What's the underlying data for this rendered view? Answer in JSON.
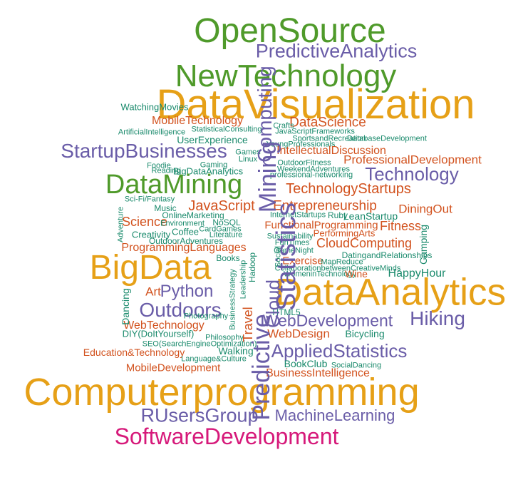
{
  "palette": {
    "orange": "#E6A017",
    "green": "#4F9A2A",
    "purple": "#6A5DA8",
    "red": "#D2521E",
    "magenta": "#D6197A",
    "teal": "#1A8A6C"
  },
  "words": [
    {
      "text": "OpenSource",
      "color": "green"
    },
    {
      "text": "PredictiveAnalytics",
      "color": "purple"
    },
    {
      "text": "NewTechnology",
      "color": "green"
    },
    {
      "text": "DataVisualization",
      "color": "orange"
    },
    {
      "text": "WatchingMovies",
      "color": "teal"
    },
    {
      "text": "MobileTechnology",
      "color": "red"
    },
    {
      "text": "DataScience",
      "color": "red"
    },
    {
      "text": "StatisticalConsulting",
      "color": "teal"
    },
    {
      "text": "Crafts",
      "color": "teal"
    },
    {
      "text": "JavaScriptFrameworks",
      "color": "teal"
    },
    {
      "text": "SportsandRecreation",
      "color": "teal"
    },
    {
      "text": "DatabaseDevelopment",
      "color": "teal"
    },
    {
      "text": "ArtificialIntelligence",
      "color": "teal"
    },
    {
      "text": "UserExperience",
      "color": "teal"
    },
    {
      "text": "YoungProfessionals",
      "color": "teal"
    },
    {
      "text": "StartupBusinesses",
      "color": "purple"
    },
    {
      "text": "IntellectualDiscussion",
      "color": "red"
    },
    {
      "text": "ProfessionalDevelopment",
      "color": "red"
    },
    {
      "text": "Games",
      "color": "teal"
    },
    {
      "text": "Linux",
      "color": "teal"
    },
    {
      "text": "OutdoorFitness",
      "color": "teal"
    },
    {
      "text": "Foodie",
      "color": "teal"
    },
    {
      "text": "Gaming",
      "color": "teal"
    },
    {
      "text": "WeekendAdventures",
      "color": "teal"
    },
    {
      "text": "Reading",
      "color": "teal"
    },
    {
      "text": "BigDataAnalytics",
      "color": "teal"
    },
    {
      "text": "professional-networking",
      "color": "teal"
    },
    {
      "text": "Technology",
      "color": "purple"
    },
    {
      "text": "DataMining",
      "color": "green"
    },
    {
      "text": "TechnologyStartups",
      "color": "red"
    },
    {
      "text": "Sci-Fi/Fantasy",
      "color": "teal"
    },
    {
      "text": "JavaScript",
      "color": "red"
    },
    {
      "text": "Entrepreneurship",
      "color": "red"
    },
    {
      "text": "DiningOut",
      "color": "red"
    },
    {
      "text": "Music",
      "color": "teal"
    },
    {
      "text": "OnlineMarketing",
      "color": "teal"
    },
    {
      "text": "InternetStartups",
      "color": "teal"
    },
    {
      "text": "Ruby",
      "color": "teal"
    },
    {
      "text": "LeanStartup",
      "color": "teal"
    },
    {
      "text": "Science",
      "color": "red"
    },
    {
      "text": "Environment",
      "color": "teal"
    },
    {
      "text": "NoSQL",
      "color": "teal"
    },
    {
      "text": "FunctionalProgramming",
      "color": "red"
    },
    {
      "text": "Fitness",
      "color": "red"
    },
    {
      "text": "Coffee",
      "color": "teal"
    },
    {
      "text": "CardGames",
      "color": "teal"
    },
    {
      "text": "PerformingArts",
      "color": "red"
    },
    {
      "text": "Creativity",
      "color": "teal"
    },
    {
      "text": "Literature",
      "color": "teal"
    },
    {
      "text": "Sustainability",
      "color": "teal"
    },
    {
      "text": "CloudComputing",
      "color": "red"
    },
    {
      "text": "OutdoorAdventures",
      "color": "teal"
    },
    {
      "text": "FunTimes",
      "color": "teal"
    },
    {
      "text": "ProgrammingLanguages",
      "color": "red"
    },
    {
      "text": "GameNight",
      "color": "teal"
    },
    {
      "text": "DatingandRelationships",
      "color": "teal"
    },
    {
      "text": "BigData",
      "color": "orange"
    },
    {
      "text": "Books",
      "color": "teal"
    },
    {
      "text": "Exercise",
      "color": "red"
    },
    {
      "text": "MapReduce",
      "color": "teal"
    },
    {
      "text": "CollaborationbetweenCreativeMinds",
      "color": "teal"
    },
    {
      "text": "WomeninTechnology",
      "color": "teal"
    },
    {
      "text": "Wine",
      "color": "red"
    },
    {
      "text": "HappyHour",
      "color": "teal"
    },
    {
      "text": "Art",
      "color": "red"
    },
    {
      "text": "Python",
      "color": "purple"
    },
    {
      "text": "DataAnalytics",
      "color": "orange"
    },
    {
      "text": "Outdoors",
      "color": "purple"
    },
    {
      "text": "Hiking",
      "color": "purple"
    },
    {
      "text": "Photography",
      "color": "teal"
    },
    {
      "text": "HTML5",
      "color": "teal"
    },
    {
      "text": "WebTechnology",
      "color": "red"
    },
    {
      "text": "WebDevelopment",
      "color": "purple"
    },
    {
      "text": "DIY(DoItYourself)",
      "color": "teal"
    },
    {
      "text": "Philosophy",
      "color": "teal"
    },
    {
      "text": "WebDesign",
      "color": "red"
    },
    {
      "text": "Bicycling",
      "color": "teal"
    },
    {
      "text": "SEO(SearchEngineOptimization)",
      "color": "teal"
    },
    {
      "text": "Education&Technology",
      "color": "red"
    },
    {
      "text": "Walking",
      "color": "teal"
    },
    {
      "text": "AppliedStatistics",
      "color": "purple"
    },
    {
      "text": "Language&Culture",
      "color": "teal"
    },
    {
      "text": "BookClub",
      "color": "teal"
    },
    {
      "text": "SocialDancing",
      "color": "teal"
    },
    {
      "text": "MobileDevelopment",
      "color": "red"
    },
    {
      "text": "BusinessIntelligence",
      "color": "red"
    },
    {
      "text": "Computerprogramming",
      "color": "orange"
    },
    {
      "text": "RUsersGroup",
      "color": "purple"
    },
    {
      "text": "MachineLearning",
      "color": "purple"
    },
    {
      "text": "SoftwareDevelopment",
      "color": "magenta"
    },
    {
      "text": "Adventure",
      "color": "teal"
    },
    {
      "text": "Dancing",
      "color": "teal"
    },
    {
      "text": "Camping",
      "color": "teal"
    },
    {
      "text": "Leadership",
      "color": "teal"
    },
    {
      "text": "BusinessStrategy",
      "color": "teal"
    },
    {
      "text": "Travel",
      "color": "red"
    },
    {
      "text": "Hadoop",
      "color": "teal"
    },
    {
      "text": "Statistics",
      "color": "purple"
    },
    {
      "text": "Predictive",
      "color": "purple"
    },
    {
      "text": "Cloud",
      "color": "purple"
    },
    {
      "text": "Social",
      "color": "teal"
    },
    {
      "text": "Mining",
      "color": "purple"
    },
    {
      "text": "Computing",
      "color": "purple"
    }
  ]
}
